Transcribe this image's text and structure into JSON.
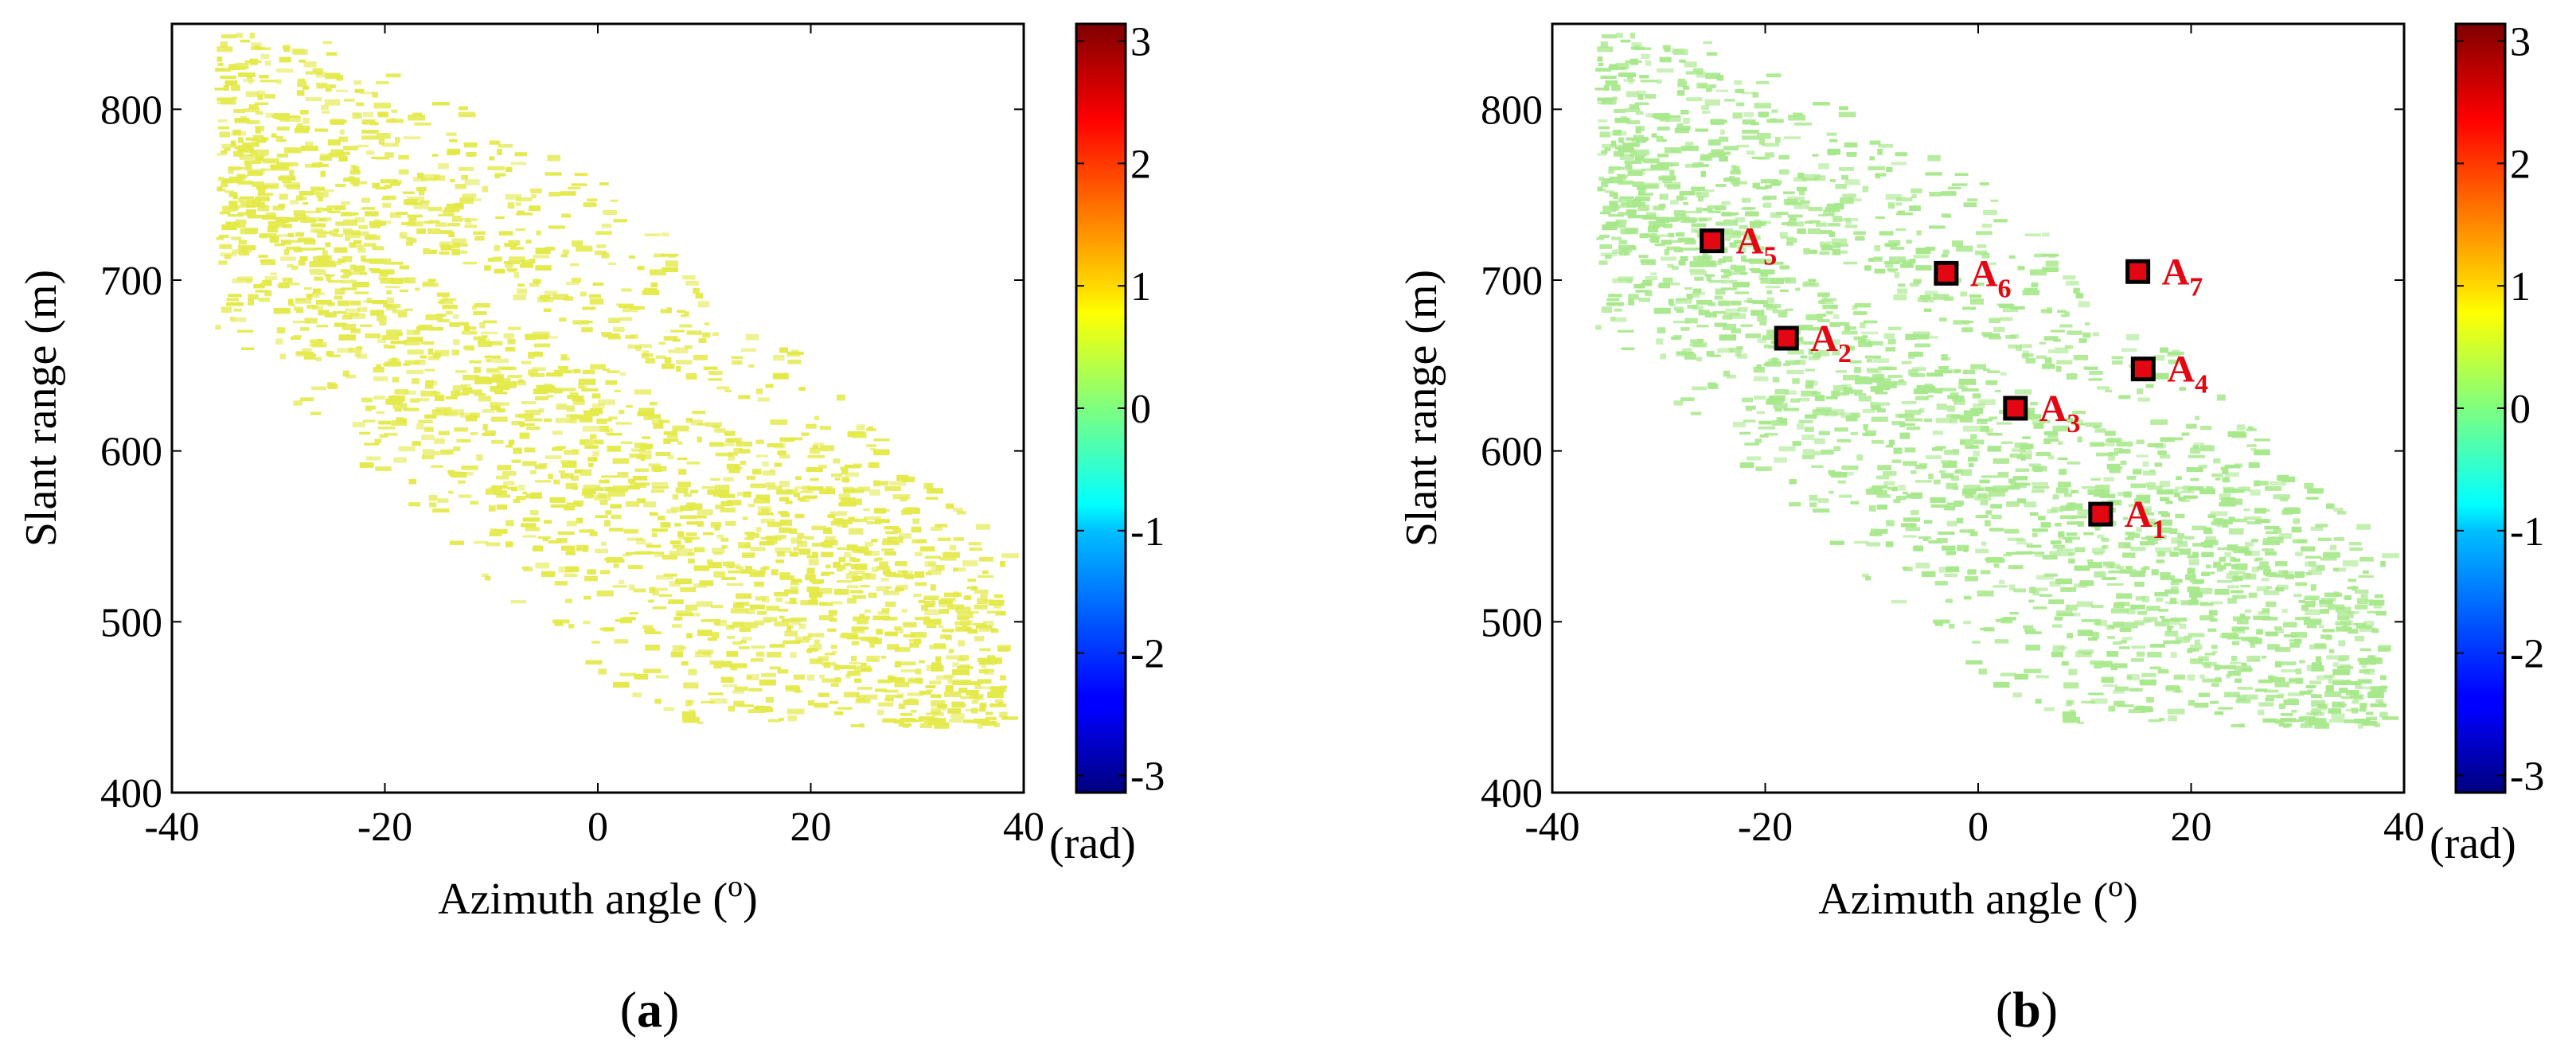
{
  "chart_data": [
    {
      "type": "heatmap",
      "panel_label": "a",
      "title": "",
      "xlabel": "Azimuth angle (",
      "xlabel_sup": "o",
      "xlabel_end": ")",
      "ylabel": "Slant range (m)",
      "xlim": [
        -40,
        40
      ],
      "ylim": [
        400,
        850
      ],
      "xticks": [
        -40,
        -20,
        0,
        20,
        40
      ],
      "yticks": [
        400,
        500,
        600,
        700,
        800
      ],
      "colorbar": {
        "label": "(rad)",
        "range": [
          -3.14,
          3.14
        ],
        "ticks": [
          -3,
          -2,
          -1,
          0,
          1,
          2,
          3
        ],
        "colormap": "jet"
      },
      "field_value_rad": 0.9,
      "field_color": "#e4e94a",
      "annotations": []
    },
    {
      "type": "heatmap",
      "panel_label": "b",
      "title": "",
      "xlabel": "Azimuth angle (",
      "xlabel_sup": "o",
      "xlabel_end": ")",
      "ylabel": "Slant range (m)",
      "xlim": [
        -40,
        40
      ],
      "ylim": [
        400,
        850
      ],
      "xticks": [
        -40,
        -20,
        0,
        20,
        40
      ],
      "yticks": [
        400,
        500,
        600,
        700,
        800
      ],
      "colorbar": {
        "label": "(rad)",
        "range": [
          -3.14,
          3.14
        ],
        "ticks": [
          -3,
          -2,
          -1,
          0,
          1,
          2,
          3
        ],
        "colormap": "jet"
      },
      "field_value_rad": 0.05,
      "field_color": "#a8e88c",
      "annotation_color": "#e30613",
      "annotations": [
        {
          "label": "A",
          "sub": "1",
          "x": 11.5,
          "y": 563
        },
        {
          "label": "A",
          "sub": "2",
          "x": -18,
          "y": 666
        },
        {
          "label": "A",
          "sub": "3",
          "x": 3.5,
          "y": 625
        },
        {
          "label": "A",
          "sub": "4",
          "x": 15.5,
          "y": 648
        },
        {
          "label": "A",
          "sub": "5",
          "x": -25,
          "y": 723
        },
        {
          "label": "A",
          "sub": "6",
          "x": -3,
          "y": 704
        },
        {
          "label": "A",
          "sub": "7",
          "x": 15,
          "y": 705
        }
      ]
    }
  ]
}
